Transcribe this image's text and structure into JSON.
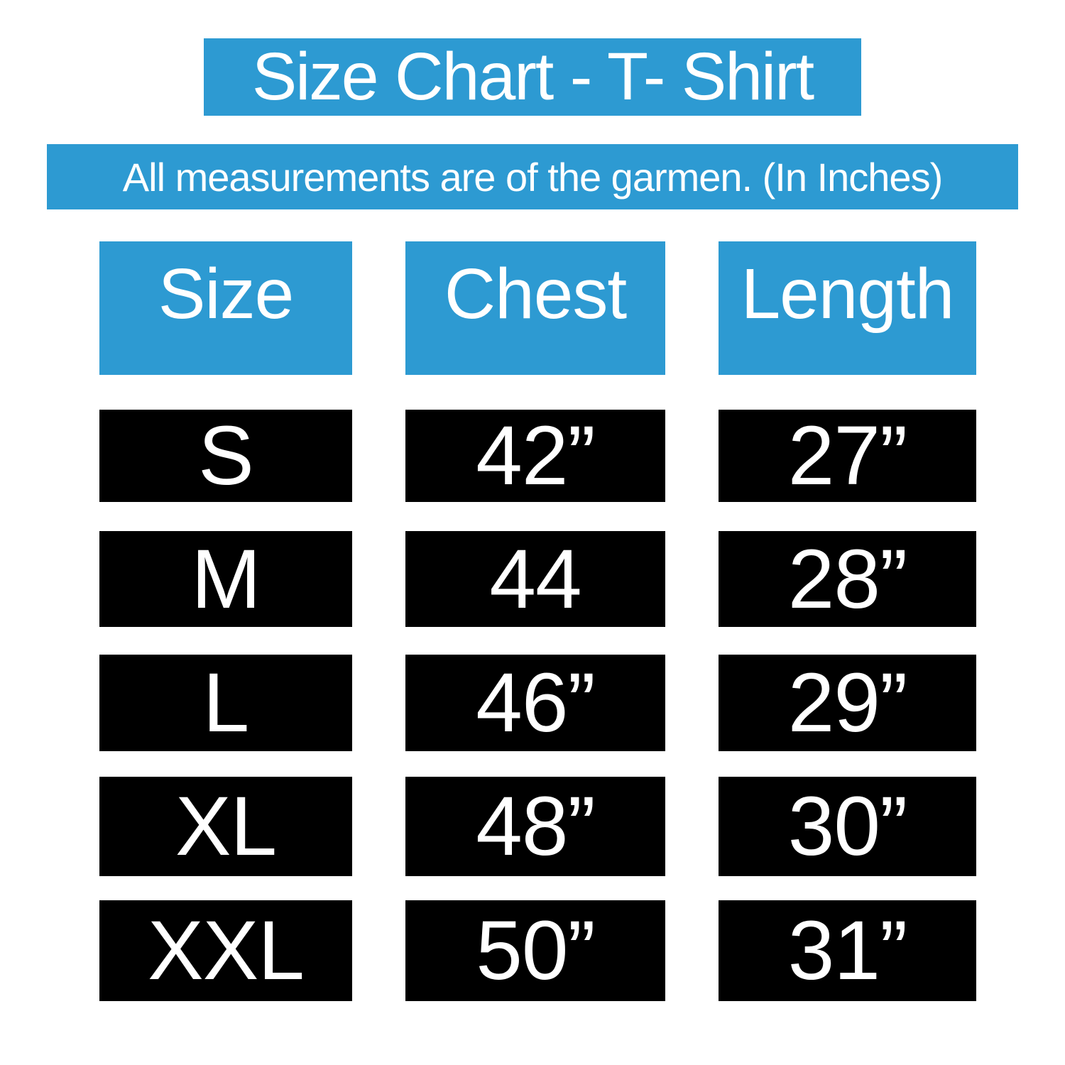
{
  "title": "Size Chart - T- Shirt",
  "subtitle": "All measurements are of the garmen. (In Inches)",
  "colors": {
    "accent_blue": "#2D9AD2",
    "cell_black": "#000000",
    "text_white": "#FFFFFF",
    "background": "#FFFFFF"
  },
  "chart_data": {
    "type": "table",
    "title": "Size Chart - T- Shirt",
    "subtitle": "All measurements are of the garmen. (In Inches)",
    "units": "inches",
    "columns": [
      "Size",
      "Chest",
      "Length"
    ],
    "rows": [
      [
        "S",
        "42”",
        "27”"
      ],
      [
        "M",
        "44",
        "28”"
      ],
      [
        "L",
        "46”",
        "29”"
      ],
      [
        "XL",
        "48”",
        "30”"
      ],
      [
        "XXL",
        "50”",
        "31”"
      ]
    ]
  }
}
